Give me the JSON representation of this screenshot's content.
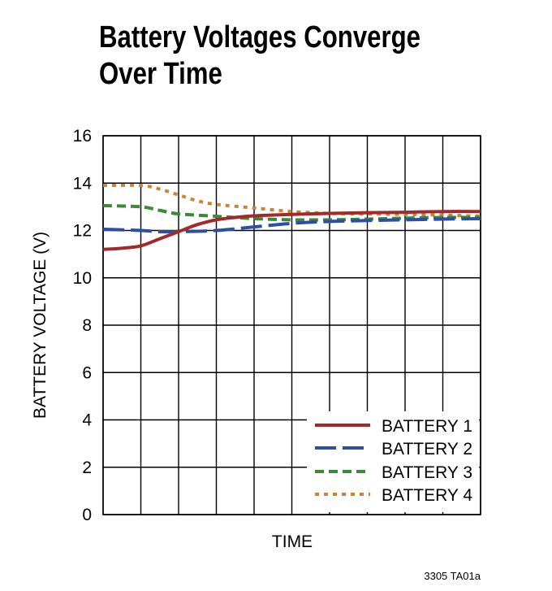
{
  "title_lines": [
    "Battery Voltages Converge",
    "Over Time"
  ],
  "figure_id": "3305 TA01a",
  "colors": {
    "battery1": "#a32a2a",
    "battery2": "#2e4ea3",
    "battery3": "#3a8a3a",
    "battery4": "#c8843a",
    "grid": "#000000"
  },
  "chart_data": {
    "type": "line",
    "title": "Battery Voltages Converge Over Time",
    "xlabel": "TIME",
    "ylabel": "BATTERY VOLTAGE (V)",
    "ylim": [
      0,
      16
    ],
    "yticks": [
      "0",
      "2",
      "4",
      "6",
      "8",
      "10",
      "12",
      "14",
      "16"
    ],
    "x_divisions": 10,
    "xlim": [
      0,
      10
    ],
    "grid": true,
    "legend_position": "bottom-right",
    "series": [
      {
        "name": "BATTERY 1",
        "style": "solid",
        "x": [
          0,
          0.5,
          1,
          1.5,
          2,
          2.5,
          3,
          3.5,
          4,
          5,
          6,
          7,
          8,
          9,
          10
        ],
        "y": [
          11.2,
          11.25,
          11.35,
          11.65,
          11.95,
          12.25,
          12.45,
          12.55,
          12.62,
          12.68,
          12.72,
          12.75,
          12.77,
          12.8,
          12.8
        ]
      },
      {
        "name": "BATTERY 2",
        "style": "longdash",
        "x": [
          0,
          1,
          1.5,
          2,
          3,
          4,
          5,
          6,
          7,
          8,
          9,
          10
        ],
        "y": [
          12.05,
          12.0,
          11.95,
          11.95,
          12.0,
          12.15,
          12.3,
          12.38,
          12.42,
          12.45,
          12.48,
          12.5
        ]
      },
      {
        "name": "BATTERY 3",
        "style": "dash",
        "x": [
          0,
          1,
          1.5,
          2,
          3,
          4,
          5,
          6,
          7,
          8,
          9,
          10
        ],
        "y": [
          13.05,
          13.0,
          12.85,
          12.7,
          12.6,
          12.5,
          12.45,
          12.45,
          12.48,
          12.52,
          12.55,
          12.55
        ]
      },
      {
        "name": "BATTERY 4",
        "style": "dot",
        "x": [
          0,
          1,
          1.5,
          2,
          2.5,
          3,
          4,
          5,
          6,
          7,
          8,
          9,
          10
        ],
        "y": [
          13.9,
          13.9,
          13.75,
          13.5,
          13.25,
          13.1,
          12.95,
          12.8,
          12.72,
          12.7,
          12.68,
          12.65,
          12.6
        ]
      }
    ]
  }
}
